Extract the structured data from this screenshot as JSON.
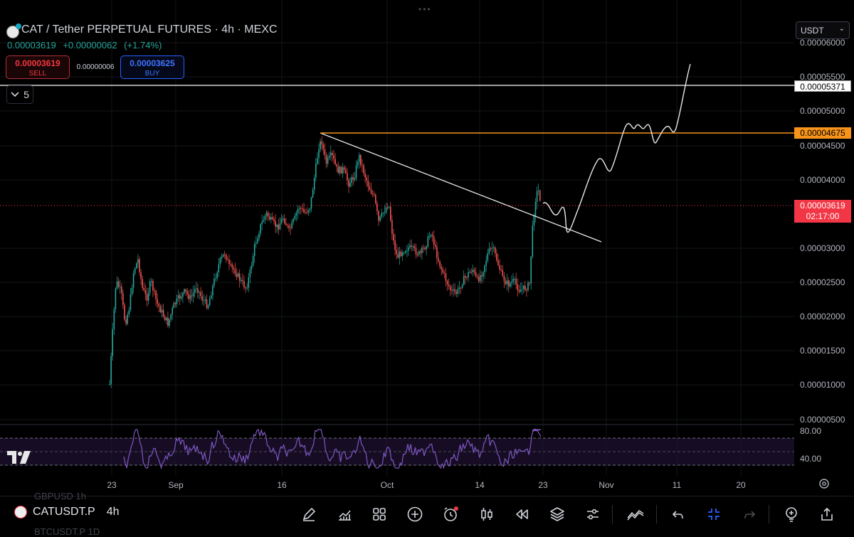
{
  "header": {
    "title": "CAT / Tether PERPETUAL FUTURES · 4h · MEXC",
    "last": "0.00003619",
    "change": "+0.00000062",
    "change_pct": "(+1.74%)",
    "sell_price": "0.00003619",
    "sell_label": "SELL",
    "buy_price": "0.00003625",
    "buy_label": "BUY",
    "spread": "0.00000006",
    "indicators_count": "5",
    "currency": "USDT",
    "handle": "•••"
  },
  "chart_data": {
    "type": "candlestick",
    "y_ticks": [
      "0.00006000",
      "0.00005500",
      "0.00005000",
      "0.00004500",
      "0.00004000",
      "0.00003000",
      "0.00002500",
      "0.00002000",
      "0.00001500",
      "0.00001000",
      "0.00000500"
    ],
    "x_ticks": [
      "23",
      "Sep",
      "16",
      "Oct",
      "14",
      "23",
      "Nov",
      "11",
      "20"
    ],
    "price_labels": {
      "white_line": "0.00005371",
      "orange_line": "0.00004675",
      "last_price": "0.00003619",
      "countdown": "02:17:00"
    },
    "rsi_ticks": [
      "80.00",
      "40.00"
    ],
    "colors": {
      "up": "#26a69a",
      "down": "#ef5350",
      "rsi": "#7e57c2",
      "orange": "#f7931a"
    }
  },
  "bottom_bar": {
    "symbol": "CATUSDT.P",
    "timeframe": "4h",
    "ghost_top": "GBPUSD     1h",
    "ghost_bottom": "BTCUSDT.P  1D",
    "tools": [
      "pencil-icon",
      "chart-icon",
      "grid-icon",
      "plus-circle-icon",
      "alert-icon",
      "candle-icon",
      "replay-icon",
      "layers-icon",
      "sliders-icon",
      "ideas-icon",
      "undo-icon",
      "collapse-icon",
      "redo-icon",
      "bulb-icon",
      "share-icon"
    ]
  }
}
